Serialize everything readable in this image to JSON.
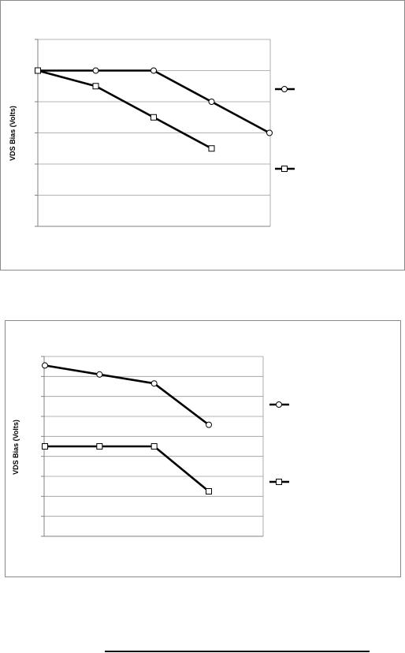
{
  "colors": {
    "gridline": "#9a9a9a",
    "axis": "#808080",
    "series": "#000000",
    "border": "#8a8a8a"
  },
  "chart_data": [
    {
      "type": "line",
      "title": "",
      "xlabel": "",
      "ylabel": "VDS Bias (Volts)",
      "x": [
        1,
        2,
        3,
        4,
        5
      ],
      "ylim": [
        0,
        6
      ],
      "grid": true,
      "legend_position": "right",
      "series": [
        {
          "marker": "circle",
          "values": [
            5,
            5,
            5,
            4,
            3
          ]
        },
        {
          "marker": "square",
          "values": [
            5,
            4.5,
            3.5,
            2.5,
            null
          ]
        }
      ]
    },
    {
      "type": "line",
      "title": "",
      "xlabel": "",
      "ylabel": "VDS Bias (Volts)",
      "x": [
        1,
        2,
        3,
        4
      ],
      "ylim": [
        0,
        10
      ],
      "grid": true,
      "legend_position": "right",
      "series": [
        {
          "marker": "circle",
          "values": [
            9.5,
            9.0,
            8.5,
            6.2
          ]
        },
        {
          "marker": "square",
          "values": [
            5.0,
            5.0,
            5.0,
            2.5
          ]
        }
      ]
    }
  ]
}
